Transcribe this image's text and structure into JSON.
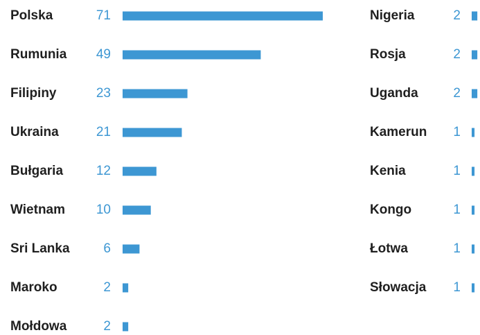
{
  "chart_data": {
    "type": "bar",
    "categories": [
      "Polska",
      "Rumunia",
      "Filipiny",
      "Ukraina",
      "Bułgaria",
      "Wietnam",
      "Sri Lanka",
      "Maroko",
      "Mołdowa",
      "Nigeria",
      "Rosja",
      "Uganda",
      "Kamerun",
      "Kenia",
      "Kongo",
      "Łotwa",
      "Słowacja"
    ],
    "values": [
      71,
      49,
      23,
      21,
      12,
      10,
      6,
      2,
      2,
      2,
      2,
      2,
      1,
      1,
      1,
      1,
      1
    ],
    "color": "#3d97d3"
  }
}
